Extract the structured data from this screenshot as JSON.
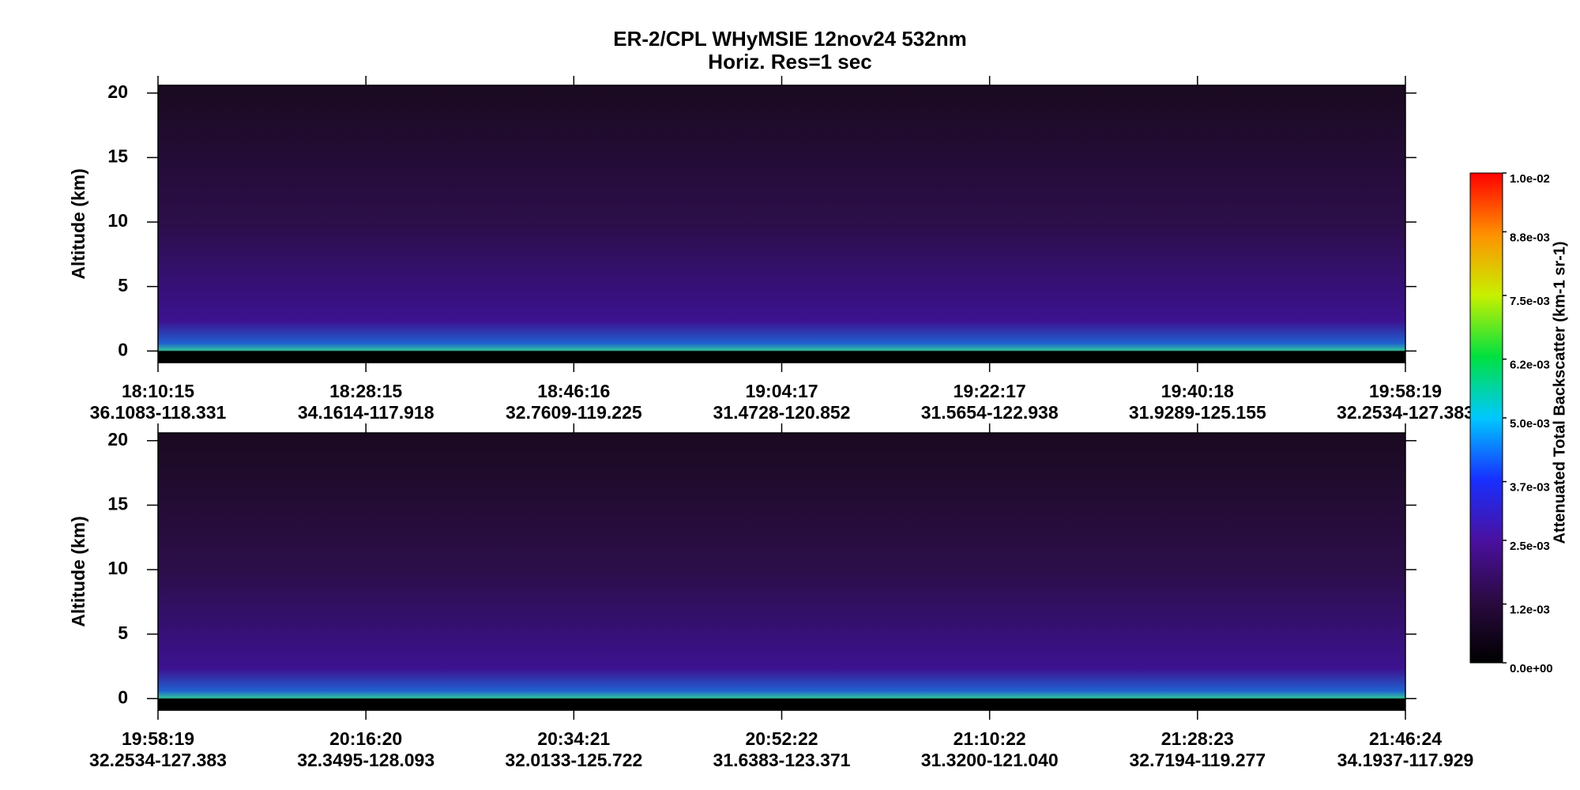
{
  "title": "ER-2/CPL  WHyMSIE  12nov24  532nm",
  "subtitle": "Horiz. Res=1 sec",
  "chart_data": [
    {
      "type": "heatmap",
      "ylabel": "Altitude (km)",
      "ylim": [
        -0.9,
        20.6
      ],
      "yticks": [
        0,
        5,
        10,
        15,
        20
      ],
      "x_labels": [
        {
          "time": "18:10:15",
          "location": "36.1083-118.331"
        },
        {
          "time": "18:28:15",
          "location": "34.1614-117.918"
        },
        {
          "time": "18:46:16",
          "location": "32.7609-119.225"
        },
        {
          "time": "19:04:17",
          "location": "31.4728-120.852"
        },
        {
          "time": "19:22:17",
          "location": "31.5654-122.938"
        },
        {
          "time": "19:40:18",
          "location": "31.9289-125.155"
        },
        {
          "time": "19:58:19",
          "location": "32.2534-127.383"
        }
      ]
    },
    {
      "type": "heatmap",
      "ylabel": "Altitude (km)",
      "ylim": [
        -0.9,
        20.6
      ],
      "yticks": [
        0,
        5,
        10,
        15,
        20
      ],
      "x_labels": [
        {
          "time": "19:58:19",
          "location": "32.2534-127.383"
        },
        {
          "time": "20:16:20",
          "location": "32.3495-128.093"
        },
        {
          "time": "20:34:21",
          "location": "32.0133-125.722"
        },
        {
          "time": "20:52:22",
          "location": "31.6383-123.371"
        },
        {
          "time": "21:10:22",
          "location": "31.3200-121.040"
        },
        {
          "time": "21:28:23",
          "location": "32.7194-119.277"
        },
        {
          "time": "21:46:24",
          "location": "34.1937-117.929"
        }
      ]
    }
  ],
  "colorbar": {
    "label": "Attenuated Total Backscatter (km-1 sr-1)",
    "ylim": [
      0,
      0.01
    ],
    "colors": [
      "#000000",
      "#2a0a40",
      "#4a10a0",
      "#1830ff",
      "#00c8ff",
      "#00e040",
      "#c8f000",
      "#ff9000",
      "#ff0000"
    ],
    "yticks": [
      {
        "value": 0,
        "label": "0.0e+00"
      },
      {
        "value": 0.0012,
        "label": "1.2e-03"
      },
      {
        "value": 0.0025,
        "label": "2.5e-03"
      },
      {
        "value": 0.0037,
        "label": "3.7e-03"
      },
      {
        "value": 0.005,
        "label": "5.0e-03"
      },
      {
        "value": 0.0062,
        "label": "6.2e-03"
      },
      {
        "value": 0.0075,
        "label": "7.5e-03"
      },
      {
        "value": 0.0088,
        "label": "8.8e-03"
      },
      {
        "value": 0.01,
        "label": "1.0e-02"
      }
    ]
  }
}
